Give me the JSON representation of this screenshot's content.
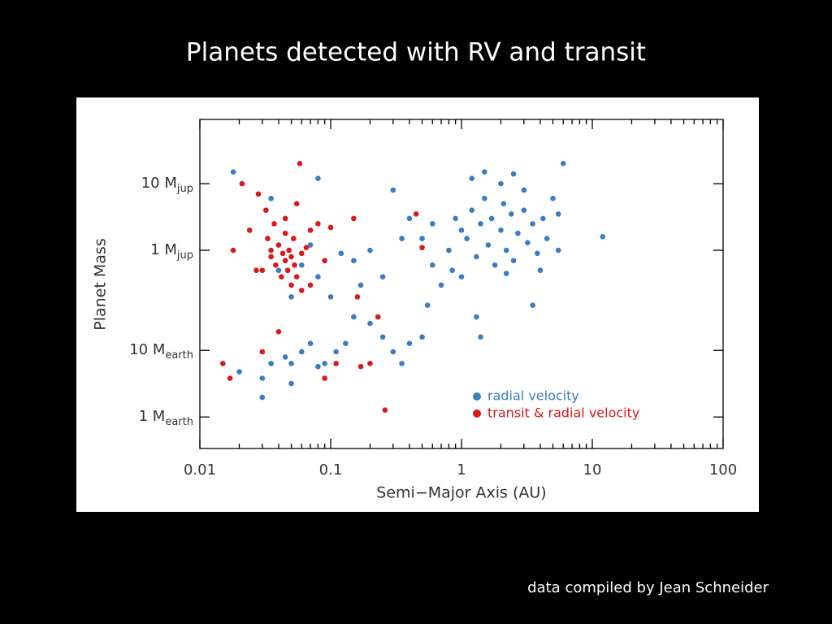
{
  "chart_data": {
    "type": "scatter",
    "title": "Planets detected with RV and transit",
    "footer": "data compiled by Jean Schneider",
    "xlabel": "Semi−Major Axis (AU)",
    "ylabel": "Planet Mass",
    "xscale": "log",
    "yscale": "log",
    "xlim": [
      0.01,
      100
    ],
    "ylim": [
      0.00106,
      92
    ],
    "xticks": [
      0.01,
      0.1,
      1,
      10,
      100
    ],
    "yticks": [
      {
        "value": 10,
        "label": "10 Mjup"
      },
      {
        "value": 1,
        "label": "1 Mjup"
      },
      {
        "value": 0.03147,
        "label": "10 Mearth"
      },
      {
        "value": 0.003147,
        "label": "1 Mearth"
      }
    ],
    "legend": "lower right",
    "series": [
      {
        "name": "radial velocity",
        "color": "#3b7dbd",
        "x": [
          0.9,
          1.0,
          1.1,
          1.2,
          1.3,
          1.4,
          1.5,
          1.6,
          1.7,
          1.8,
          2.0,
          2.1,
          2.2,
          2.4,
          2.5,
          2.7,
          3.0,
          3.2,
          3.5,
          3.8,
          4.2,
          4.5,
          5.0,
          5.5,
          6.0,
          12,
          0.7,
          0.8,
          0.6,
          1.2,
          1.5,
          2.0,
          2.5,
          3.0,
          0.85,
          1.3,
          1.4,
          3.5,
          1.0,
          2.2,
          4.0,
          5.5,
          0.55,
          0.5,
          0.4,
          0.35,
          0.3,
          0.25,
          0.2,
          0.15,
          0.13,
          0.11,
          0.1,
          0.08,
          0.07,
          0.06,
          0.05,
          0.045,
          0.06,
          0.07,
          0.09,
          0.08,
          0.035,
          0.03,
          0.02,
          0.018,
          0.035,
          0.08,
          0.3,
          0.35,
          0.4,
          0.25,
          0.2,
          0.15,
          0.12,
          0.17,
          0.5,
          0.6,
          0.04,
          0.05,
          0.05,
          0.03
        ],
        "y": [
          3,
          2,
          1.5,
          4,
          0.8,
          2.5,
          6,
          1.2,
          3,
          0.6,
          2,
          5,
          1,
          3.5,
          0.7,
          1.8,
          4,
          1.3,
          2.5,
          0.9,
          3,
          1.5,
          6,
          1,
          20,
          1.6,
          0.3,
          1,
          2.5,
          12,
          15,
          10,
          14,
          8,
          0.5,
          0.1,
          0.05,
          0.15,
          0.4,
          0.45,
          0.5,
          3.5,
          0.15,
          0.05,
          0.04,
          0.02,
          0.03,
          0.05,
          0.08,
          0.1,
          0.04,
          0.03,
          0.2,
          0.4,
          1.2,
          0.6,
          0.02,
          0.025,
          0.03,
          0.04,
          0.02,
          0.018,
          0.02,
          0.012,
          0.015,
          15,
          6,
          12,
          8,
          1.5,
          3,
          0.4,
          1,
          0.7,
          0.9,
          0.3,
          1.5,
          0.6,
          0.5,
          0.2,
          0.01,
          0.0062
        ]
      },
      {
        "name": "transit & radial velocity",
        "color": "#d7191c",
        "x": [
          0.015,
          0.017,
          0.018,
          0.021,
          0.024,
          0.027,
          0.028,
          0.03,
          0.032,
          0.033,
          0.035,
          0.037,
          0.038,
          0.04,
          0.042,
          0.043,
          0.045,
          0.045,
          0.047,
          0.048,
          0.05,
          0.05,
          0.052,
          0.053,
          0.055,
          0.055,
          0.058,
          0.06,
          0.065,
          0.07,
          0.07,
          0.08,
          0.09,
          0.09,
          0.1,
          0.11,
          0.15,
          0.16,
          0.17,
          0.2,
          0.23,
          0.26,
          0.45,
          0.5,
          0.04,
          0.03,
          0.06,
          0.045,
          0.035
        ],
        "y": [
          0.02,
          0.012,
          1,
          10,
          2,
          0.5,
          7,
          0.03,
          4,
          1.5,
          0.8,
          2.5,
          0.6,
          1.2,
          0.4,
          0.9,
          3,
          0.7,
          0.5,
          1,
          0.3,
          0.8,
          1.5,
          0.6,
          0.4,
          5,
          20,
          0.9,
          1.1,
          2,
          0.3,
          2.5,
          0.7,
          0.012,
          2.2,
          0.02,
          3,
          0.2,
          0.018,
          0.02,
          0.1,
          0.004,
          3.5,
          1.1,
          0.06,
          0.5,
          0.25,
          1.8,
          1
        ]
      }
    ]
  }
}
